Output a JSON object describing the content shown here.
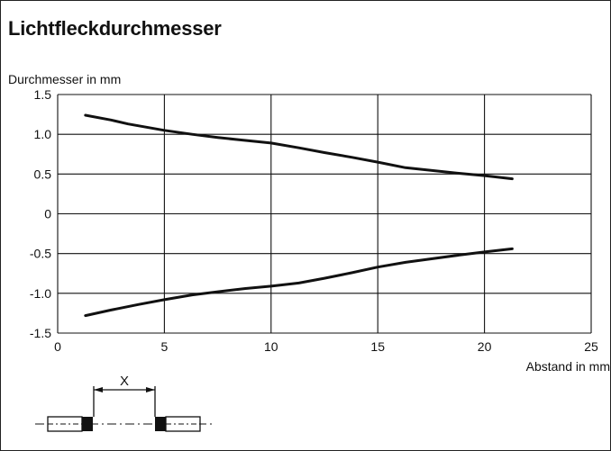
{
  "chart_data": {
    "type": "line",
    "title": "Lichtfleckdurchmesser",
    "ylabel": "Durchmesser in mm",
    "xlabel": "Abstand in mm",
    "xlim": [
      0,
      25
    ],
    "ylim": [
      -1.5,
      1.5
    ],
    "xticks": [
      0,
      5,
      10,
      15,
      20,
      25
    ],
    "xtick_labels": [
      "0",
      "5",
      "10",
      "15",
      "20",
      "25"
    ],
    "yticks": [
      1.5,
      1.0,
      0.5,
      0,
      -0.5,
      -1.0,
      -1.5
    ],
    "ytick_labels": [
      "1.5",
      "1.0",
      "0.5",
      "0",
      "-0.5",
      "-1.0",
      "-1.5"
    ],
    "grid": true,
    "series": [
      {
        "color": "#111111",
        "x": [
          1.3,
          2.5,
          3.3,
          5.0,
          6.3,
          7.5,
          8.5,
          10.0,
          11.3,
          12.5,
          13.8,
          15.0,
          16.3,
          18.8,
          20.0,
          21.3
        ],
        "y": [
          1.24,
          1.18,
          1.13,
          1.05,
          1.0,
          0.96,
          0.93,
          0.89,
          0.83,
          0.77,
          0.71,
          0.65,
          0.58,
          0.51,
          0.48,
          0.44
        ]
      },
      {
        "color": "#111111",
        "x": [
          1.3,
          2.5,
          3.8,
          5.0,
          6.3,
          7.5,
          8.8,
          10.0,
          11.3,
          12.5,
          13.8,
          15.0,
          16.3,
          18.8,
          20.0,
          21.3
        ],
        "y": [
          -1.28,
          -1.21,
          -1.14,
          -1.08,
          -1.02,
          -0.98,
          -0.94,
          -0.91,
          -0.87,
          -0.81,
          -0.74,
          -0.67,
          -0.61,
          -0.52,
          -0.48,
          -0.44
        ]
      }
    ],
    "annotation": {
      "label": "X"
    }
  }
}
